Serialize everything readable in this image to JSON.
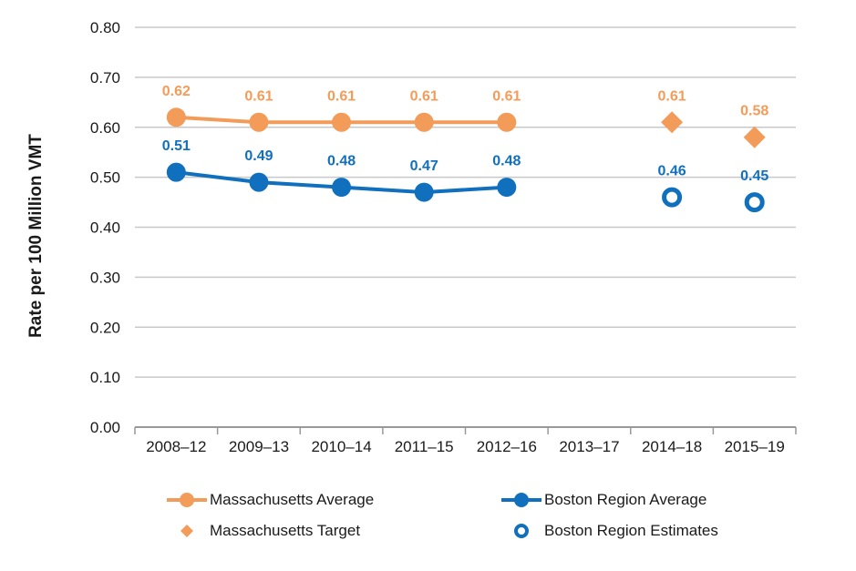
{
  "page": {
    "background": "#FFFFFF"
  },
  "chart_data": {
    "type": "line",
    "title": "",
    "xlabel": "",
    "ylabel": "Rate per 100 Million VMT",
    "categories": [
      "2008–12",
      "2009–13",
      "2010–14",
      "2011–15",
      "2012–16",
      "2013–17",
      "2014–18",
      "2015–19"
    ],
    "ylim": [
      0,
      0.8
    ],
    "ytick_step": 0.1,
    "ytick_labels": [
      "0.00",
      "0.10",
      "0.20",
      "0.30",
      "0.40",
      "0.50",
      "0.60",
      "0.70",
      "0.80"
    ],
    "grid": true,
    "legend_position": "bottom",
    "colors": {
      "orange": "#F39C5A",
      "blue": "#1170BD",
      "grid": "#C8C8C8",
      "axis": "#999999",
      "text": "#1A1A1A"
    },
    "series": [
      {
        "name": "Massachusetts Average",
        "marker": "filled-circle",
        "line": true,
        "color": "#F39C5A",
        "category_indices": [
          0,
          1,
          2,
          3,
          4
        ],
        "values": [
          0.62,
          0.61,
          0.61,
          0.61,
          0.61
        ],
        "labels": [
          "0.62",
          "0.61",
          "0.61",
          "0.61",
          "0.61"
        ]
      },
      {
        "name": "Boston Region Average",
        "marker": "filled-circle",
        "line": true,
        "color": "#1170BD",
        "category_indices": [
          0,
          1,
          2,
          3,
          4
        ],
        "values": [
          0.51,
          0.49,
          0.48,
          0.47,
          0.48
        ],
        "labels": [
          "0.51",
          "0.49",
          "0.48",
          "0.47",
          "0.48"
        ]
      },
      {
        "name": "Massachusetts Target",
        "marker": "diamond",
        "line": false,
        "color": "#F39C5A",
        "category_indices": [
          6,
          7
        ],
        "values": [
          0.61,
          0.58
        ],
        "labels": [
          "0.61",
          "0.58"
        ]
      },
      {
        "name": "Boston Region Estimates",
        "marker": "open-circle",
        "line": false,
        "color": "#1170BD",
        "category_indices": [
          6,
          7
        ],
        "values": [
          0.46,
          0.45
        ],
        "labels": [
          "0.46",
          "0.45"
        ]
      }
    ],
    "legend_grid": [
      [
        0,
        1
      ],
      [
        2,
        3
      ]
    ]
  }
}
